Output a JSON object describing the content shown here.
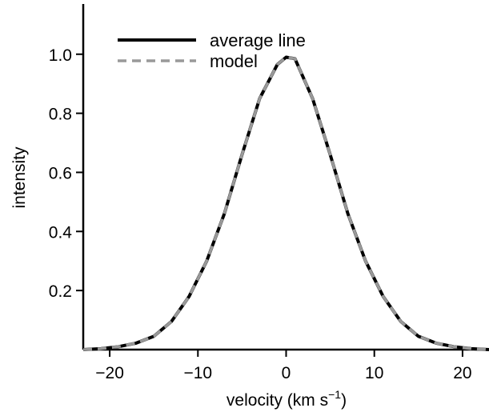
{
  "chart_data": {
    "type": "line",
    "title": "",
    "xlabel": "velocity  (km s",
    "xlabel_sup": "−1",
    "xlabel_close": ")",
    "ylabel": "intensity",
    "xlim": [
      -23,
      23
    ],
    "ylim": [
      0,
      1.17
    ],
    "xticks": [
      -20,
      -10,
      0,
      10,
      20
    ],
    "xtick_labels": [
      "−20",
      "−10",
      "0",
      "10",
      "20"
    ],
    "yticks": [
      0.2,
      0.4,
      0.6,
      0.8,
      1.0
    ],
    "ytick_labels": [
      "0.2",
      "0.4",
      "0.6",
      "0.8",
      "1.0"
    ],
    "grid": false,
    "legend_position": "top-left",
    "series": [
      {
        "name": "average line",
        "color": "#000000",
        "style": "solid",
        "x": [
          -23,
          -21,
          -19,
          -17,
          -15,
          -13,
          -11,
          -9,
          -7,
          -5,
          -3,
          -1,
          0,
          1,
          3,
          5,
          7,
          9,
          11,
          13,
          15,
          17,
          19,
          21,
          23
        ],
        "y": [
          0.0,
          0.003,
          0.01,
          0.022,
          0.045,
          0.095,
          0.18,
          0.3,
          0.46,
          0.66,
          0.85,
          0.965,
          0.99,
          0.985,
          0.85,
          0.66,
          0.46,
          0.3,
          0.18,
          0.095,
          0.045,
          0.022,
          0.01,
          0.003,
          0.0
        ]
      },
      {
        "name": "model",
        "color": "#999999",
        "style": "dashed",
        "x": [
          -23,
          -21,
          -19,
          -17,
          -15,
          -13,
          -11,
          -9,
          -7,
          -5,
          -3,
          -1,
          0,
          1,
          3,
          5,
          7,
          9,
          11,
          13,
          15,
          17,
          19,
          21,
          23
        ],
        "y": [
          0.0,
          0.003,
          0.01,
          0.022,
          0.045,
          0.095,
          0.18,
          0.3,
          0.46,
          0.66,
          0.85,
          0.965,
          0.99,
          0.985,
          0.85,
          0.66,
          0.46,
          0.3,
          0.18,
          0.095,
          0.045,
          0.022,
          0.01,
          0.003,
          0.0
        ]
      }
    ]
  }
}
